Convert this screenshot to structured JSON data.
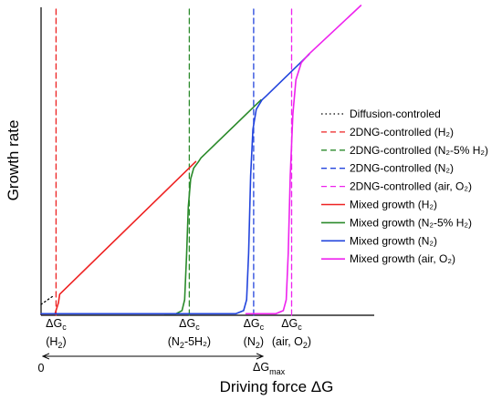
{
  "chart_data": {
    "type": "line",
    "title": "",
    "xlabel": "Driving force ΔG",
    "ylabel": "Growth rate",
    "grid": false,
    "legend_placement": "right",
    "xlim": [
      0,
      100
    ],
    "ylim": [
      0,
      100
    ],
    "series": [
      {
        "name": "Diffusion-controled",
        "style": "dotted",
        "color": "#000000",
        "points": [
          [
            0,
            3.5
          ],
          [
            4,
            6.5
          ]
        ]
      },
      {
        "name": "2DNG-controlled (H₂)",
        "style": "dashed",
        "color": "#ee2222",
        "points": [
          [
            4.5,
            0
          ],
          [
            4.5,
            100
          ]
        ]
      },
      {
        "name": "2DNG-controlled (N₂-5% H₂)",
        "style": "dashed",
        "color": "#2a8a2a",
        "points": [
          [
            44.5,
            0
          ],
          [
            44.5,
            100
          ]
        ]
      },
      {
        "name": "2DNG-controlled (N₂)",
        "style": "dashed",
        "color": "#2244dd",
        "points": [
          [
            63.8,
            0
          ],
          [
            63.8,
            100
          ]
        ]
      },
      {
        "name": "2DNG-controlled (air, O₂)",
        "style": "dashed",
        "color": "#ee22ee",
        "points": [
          [
            75.2,
            0
          ],
          [
            75.2,
            100
          ]
        ]
      },
      {
        "name": "Mixed growth (H₂)",
        "style": "solid",
        "color": "#ee2222",
        "points": [
          [
            0,
            0.5
          ],
          [
            4.2,
            0.5
          ],
          [
            5.2,
            4
          ],
          [
            5.6,
            6.8
          ],
          [
            46.4,
            49.6
          ]
        ]
      },
      {
        "name": "Mixed growth (N₂-5% H₂)",
        "style": "solid",
        "color": "#2a8a2a",
        "points": [
          [
            37,
            0.5
          ],
          [
            40.5,
            0.5
          ],
          [
            42.3,
            1.5
          ],
          [
            43.1,
            5
          ],
          [
            43.7,
            20
          ],
          [
            44.2,
            35
          ],
          [
            44.9,
            44
          ],
          [
            45.8,
            47.5
          ],
          [
            47.2,
            49.5
          ],
          [
            48,
            50.8
          ],
          [
            66,
            69.5
          ]
        ]
      },
      {
        "name": "Mixed growth (N₂)",
        "style": "solid",
        "color": "#2244dd",
        "points": [
          [
            0,
            0.5
          ],
          [
            58.5,
            0.5
          ],
          [
            60.8,
            1.5
          ],
          [
            61.7,
            5
          ],
          [
            62.3,
            20
          ],
          [
            62.9,
            45
          ],
          [
            63.6,
            60
          ],
          [
            64.6,
            66.5
          ],
          [
            66.3,
            69.5
          ],
          [
            67.6,
            70.8
          ],
          [
            80.5,
            84.3
          ]
        ]
      },
      {
        "name": "Mixed growth (air, O₂)",
        "style": "solid",
        "color": "#ee22ee",
        "points": [
          [
            61.5,
            0.5
          ],
          [
            70.5,
            0.5
          ],
          [
            72.7,
            1.5
          ],
          [
            73.6,
            5
          ],
          [
            74.2,
            20
          ],
          [
            74.8,
            45
          ],
          [
            75.6,
            65
          ],
          [
            76.5,
            76
          ],
          [
            78.1,
            81.5
          ],
          [
            80.2,
            84.1
          ],
          [
            96,
            100
          ]
        ]
      }
    ],
    "x_tick_labels": [
      {
        "x": 4.5,
        "line1": "ΔG",
        "line1_sub": "c",
        "line2": "(H",
        "line2_sub": "2",
        "line2_end": ")"
      },
      {
        "x": 44.5,
        "line1": "ΔG",
        "line1_sub": "c",
        "line2": "(N",
        "line2_sub": "2",
        "line2_end": "-5H₂)"
      },
      {
        "x": 63.8,
        "line1": "ΔG",
        "line1_sub": "c",
        "line2": "(N",
        "line2_sub": "2",
        "line2_end": ")"
      },
      {
        "x": 75.2,
        "line1": "ΔG",
        "line1_sub": "c",
        "line2": "(air, O",
        "line2_sub": "2",
        "line2_end": ")"
      }
    ],
    "annotations": {
      "zero_label": "0",
      "range_label": "ΔG",
      "range_label_sub": "max"
    }
  }
}
